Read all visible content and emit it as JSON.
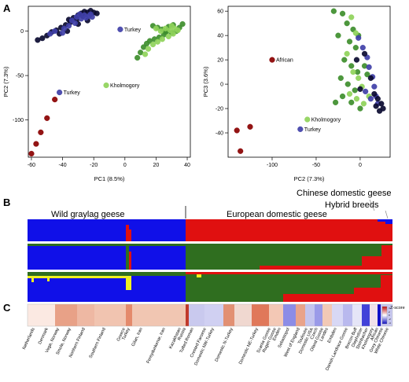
{
  "panel_labels": [
    "A",
    "B",
    "C"
  ],
  "group_labels": {
    "wild": "Wild graylag geese",
    "domestic": "European domestic geese",
    "chinese": "Chinese domestic geese",
    "hybrid": "Hybrid breeds"
  },
  "zscore_label": "Z-score",
  "zscore_ticks": [
    "4",
    "2",
    "0",
    "-2",
    "-4"
  ],
  "colors": {
    "blue": "#1010e8",
    "red": "#e01010",
    "green": "#2f6e1f",
    "yellow": "#f0f020",
    "dark_navy": "#0a0a30",
    "mid_blue": "#4040a8",
    "dark_red": "#8a0000",
    "light_green": "#8fd35a",
    "mid_green": "#3e8e2c"
  },
  "chart_data": [
    {
      "type": "scatter",
      "panel": "A-left",
      "xlabel": "PC1 (8.5%)",
      "ylabel": "PC2 (7.3%)",
      "xlim": [
        -62,
        42
      ],
      "ylim": [
        -142,
        28
      ],
      "xticks": [
        "-60",
        "-40",
        "-20",
        "0",
        "20",
        "40"
      ],
      "yticks": [
        "0",
        "-50",
        "-100"
      ],
      "annotations": [
        {
          "text": "Turkey",
          "x": -3,
          "y": 2
        },
        {
          "text": "Turkey",
          "x": -42,
          "y": -69
        },
        {
          "text": "Kholmogory",
          "x": -12,
          "y": -61
        }
      ],
      "series": [
        {
          "color": "#0a0a30",
          "points": [
            [
              -36,
              13
            ],
            [
              -33,
              15
            ],
            [
              -30,
              18
            ],
            [
              -28,
              20
            ],
            [
              -26,
              22
            ],
            [
              -24,
              21
            ],
            [
              -22,
              23
            ],
            [
              -20,
              21
            ],
            [
              -18,
              20
            ],
            [
              -27,
              17
            ],
            [
              -31,
              13
            ],
            [
              -35,
              10
            ],
            [
              -38,
              7
            ],
            [
              -41,
              4
            ],
            [
              -44,
              1
            ],
            [
              -47,
              -1
            ],
            [
              -50,
              -5
            ],
            [
              -53,
              -8
            ],
            [
              -56,
              -10
            ],
            [
              -24,
              12
            ],
            [
              -30,
              8
            ],
            [
              -37,
              0
            ],
            [
              -42,
              -3
            ]
          ]
        },
        {
          "color": "#4040a8",
          "points": [
            [
              -34,
              12
            ],
            [
              -31,
              16
            ],
            [
              -29,
              19
            ],
            [
              -26,
              18
            ],
            [
              -23,
              17
            ],
            [
              -21,
              16
            ],
            [
              -28,
              14
            ],
            [
              -32,
              9
            ],
            [
              -36,
              6
            ],
            [
              -39,
              3
            ],
            [
              -45,
              0
            ],
            [
              -48,
              -3
            ],
            [
              -25,
              15
            ],
            [
              -22,
              19
            ],
            [
              -40,
              -2
            ],
            [
              -3,
              2
            ],
            [
              -42,
              -69
            ]
          ]
        },
        {
          "color": "#3e8e2c",
          "points": [
            [
              18,
              6
            ],
            [
              21,
              4
            ],
            [
              24,
              2
            ],
            [
              27,
              0
            ],
            [
              30,
              -2
            ],
            [
              33,
              0
            ],
            [
              35,
              4
            ],
            [
              31,
              7
            ],
            [
              28,
              5
            ],
            [
              25,
              -4
            ],
            [
              22,
              -7
            ],
            [
              19,
              -9
            ],
            [
              16,
              -11
            ],
            [
              14,
              -14
            ],
            [
              12,
              -18
            ],
            [
              10,
              -24
            ],
            [
              8,
              -30
            ],
            [
              26,
              -1
            ],
            [
              37,
              8
            ]
          ]
        },
        {
          "color": "#8fd35a",
          "points": [
            [
              20,
              3
            ],
            [
              23,
              0
            ],
            [
              26,
              3
            ],
            [
              29,
              1
            ],
            [
              32,
              3
            ],
            [
              34,
              1
            ],
            [
              31,
              -3
            ],
            [
              28,
              -6
            ],
            [
              24,
              -9
            ],
            [
              21,
              -12
            ],
            [
              18,
              -15
            ],
            [
              15,
              -20
            ],
            [
              13,
              -26
            ],
            [
              30,
              6
            ],
            [
              -12,
              -61
            ]
          ]
        },
        {
          "color": "#8a0000",
          "points": [
            [
              -45,
              -77
            ],
            [
              -50,
              -98
            ],
            [
              -54,
              -114
            ],
            [
              -57,
              -127
            ],
            [
              -60,
              -138
            ]
          ]
        }
      ]
    },
    {
      "type": "scatter",
      "panel": "A-right",
      "xlabel": "PC2 (7.3%)",
      "ylabel": "PC3 (3.6%)",
      "xlim": [
        -150,
        34
      ],
      "ylim": [
        -60,
        64
      ],
      "xticks": [
        "-100",
        "-50",
        "0"
      ],
      "yticks": [
        "60",
        "40",
        "20",
        "0",
        "-20",
        "-40"
      ],
      "annotations": [
        {
          "text": "African",
          "x": -100,
          "y": 20
        },
        {
          "text": "Kholmogory",
          "x": -60,
          "y": -29
        },
        {
          "text": "Turkey",
          "x": -68,
          "y": -37
        }
      ],
      "series": [
        {
          "color": "#3e8e2c",
          "points": [
            [
              -30,
              60
            ],
            [
              -20,
              58
            ],
            [
              -15,
              50
            ],
            [
              -8,
              45
            ],
            [
              -25,
              40
            ],
            [
              -12,
              35
            ],
            [
              -5,
              30
            ],
            [
              -18,
              20
            ],
            [
              -10,
              15
            ],
            [
              -3,
              10
            ],
            [
              -22,
              5
            ],
            [
              -14,
              0
            ],
            [
              -6,
              -5
            ],
            [
              -20,
              -10
            ],
            [
              -10,
              -15
            ],
            [
              0,
              -20
            ],
            [
              5,
              15
            ],
            [
              8,
              8
            ],
            [
              -28,
              -15
            ],
            [
              -2,
              40
            ]
          ]
        },
        {
          "color": "#8fd35a",
          "points": [
            [
              -10,
              55
            ],
            [
              -5,
              42
            ],
            [
              -15,
              25
            ],
            [
              -8,
              10
            ],
            [
              -2,
              5
            ],
            [
              2,
              -2
            ],
            [
              -12,
              -8
            ],
            [
              -4,
              -12
            ],
            [
              4,
              -16
            ],
            [
              10,
              -10
            ],
            [
              -60,
              -29
            ]
          ]
        },
        {
          "color": "#4040a8",
          "points": [
            [
              -2,
              38
            ],
            [
              3,
              30
            ],
            [
              8,
              22
            ],
            [
              10,
              14
            ],
            [
              14,
              6
            ],
            [
              16,
              -2
            ],
            [
              18,
              -10
            ],
            [
              20,
              -16
            ],
            [
              12,
              -12
            ],
            [
              6,
              -6
            ],
            [
              -68,
              -37
            ]
          ]
        },
        {
          "color": "#0a0a30",
          "points": [
            [
              5,
              25
            ],
            [
              12,
              5
            ],
            [
              16,
              -8
            ],
            [
              20,
              -12
            ],
            [
              24,
              -16
            ],
            [
              26,
              -20
            ],
            [
              22,
              -22
            ],
            [
              18,
              -18
            ],
            [
              0,
              -4
            ],
            [
              -4,
              20
            ]
          ]
        },
        {
          "color": "#8a0000",
          "points": [
            [
              -100,
              20
            ],
            [
              -125,
              -35
            ],
            [
              -140,
              -38
            ],
            [
              -136,
              -55
            ]
          ]
        }
      ]
    }
  ]
}
